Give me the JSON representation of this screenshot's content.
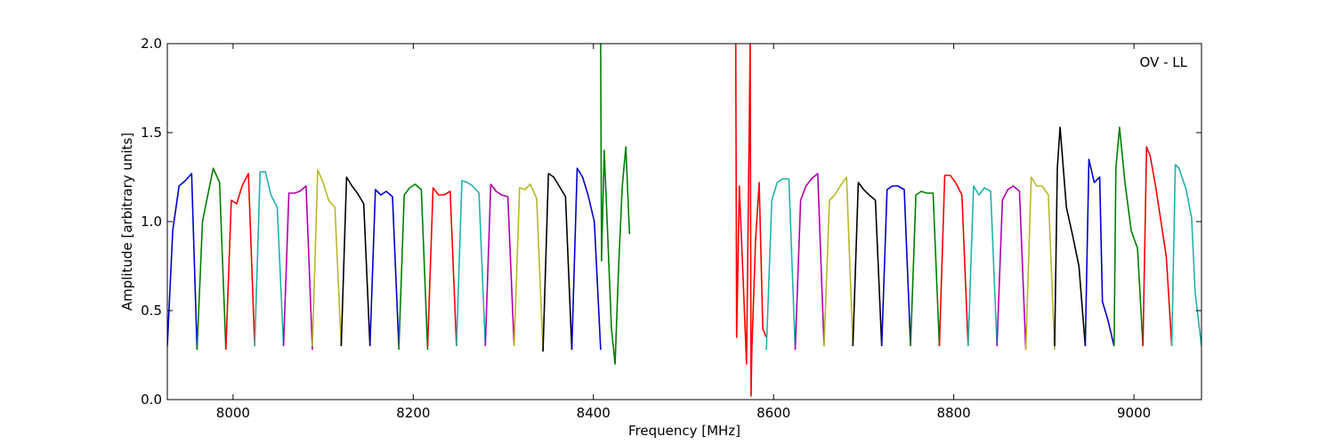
{
  "chart_data": {
    "type": "line",
    "title": "",
    "annotation": "OV - LL",
    "xlabel": "Frequency [MHz]",
    "ylabel": "Amplitude [arbitrary units]",
    "xlim": [
      7927,
      9075
    ],
    "ylim": [
      0.0,
      2.0
    ],
    "xticks": [
      8000,
      8200,
      8400,
      8600,
      8800,
      9000
    ],
    "yticks": [
      0.0,
      0.5,
      1.0,
      1.5,
      2.0
    ],
    "xtick_labels": [
      "8000",
      "8200",
      "8400",
      "8600",
      "8800",
      "9000"
    ],
    "ytick_labels": [
      "0.0",
      "0.5",
      "1.0",
      "1.5",
      "2.0"
    ],
    "grid": false,
    "legend": "none",
    "colors": {
      "blue": "#0000cc",
      "green": "#007f00",
      "red": "#ff0000",
      "cyan": "#20b2aa",
      "magenta": "#b000b0",
      "olive": "#b8b82a",
      "black": "#000000"
    },
    "series": [
      {
        "color": "blue",
        "x": [
          7927,
          7933,
          7940,
          7947,
          7954,
          7960
        ],
        "y": [
          0.3,
          0.95,
          1.2,
          1.23,
          1.27,
          0.28
        ]
      },
      {
        "color": "green",
        "x": [
          7960,
          7966,
          7972,
          7978,
          7985,
          7992
        ],
        "y": [
          0.28,
          1.0,
          1.15,
          1.3,
          1.22,
          0.28
        ]
      },
      {
        "color": "red",
        "x": [
          7992,
          7998,
          8004,
          8010,
          8017,
          8024
        ],
        "y": [
          0.28,
          1.12,
          1.1,
          1.2,
          1.27,
          0.3
        ]
      },
      {
        "color": "cyan",
        "x": [
          8024,
          8030,
          8036,
          8042,
          8049,
          8056
        ],
        "y": [
          0.3,
          1.28,
          1.28,
          1.15,
          1.08,
          0.3
        ]
      },
      {
        "color": "magenta",
        "x": [
          8056,
          8062,
          8068,
          8074,
          8081,
          8088
        ],
        "y": [
          0.3,
          1.16,
          1.16,
          1.17,
          1.2,
          0.28
        ]
      },
      {
        "color": "olive",
        "x": [
          8088,
          8094,
          8100,
          8106,
          8113,
          8120
        ],
        "y": [
          0.3,
          1.29,
          1.22,
          1.12,
          1.08,
          0.3
        ]
      },
      {
        "color": "black",
        "x": [
          8120,
          8126,
          8132,
          8138,
          8145,
          8152
        ],
        "y": [
          0.3,
          1.25,
          1.2,
          1.16,
          1.1,
          0.3
        ]
      },
      {
        "color": "blue",
        "x": [
          8152,
          8158,
          8164,
          8170,
          8177,
          8184
        ],
        "y": [
          0.3,
          1.18,
          1.15,
          1.17,
          1.14,
          0.3
        ]
      },
      {
        "color": "green",
        "x": [
          8184,
          8190,
          8196,
          8202,
          8209,
          8216
        ],
        "y": [
          0.28,
          1.15,
          1.19,
          1.21,
          1.18,
          0.28
        ]
      },
      {
        "color": "red",
        "x": [
          8216,
          8222,
          8228,
          8234,
          8241,
          8248
        ],
        "y": [
          0.3,
          1.19,
          1.15,
          1.15,
          1.17,
          0.3
        ]
      },
      {
        "color": "cyan",
        "x": [
          8248,
          8254,
          8260,
          8266,
          8273,
          8280
        ],
        "y": [
          0.3,
          1.23,
          1.22,
          1.2,
          1.16,
          0.3
        ]
      },
      {
        "color": "magenta",
        "x": [
          8280,
          8286,
          8292,
          8298,
          8305,
          8312
        ],
        "y": [
          0.3,
          1.21,
          1.17,
          1.15,
          1.14,
          0.3
        ]
      },
      {
        "color": "olive",
        "x": [
          8312,
          8318,
          8324,
          8330,
          8337,
          8344
        ],
        "y": [
          0.3,
          1.19,
          1.18,
          1.21,
          1.13,
          0.27
        ]
      },
      {
        "color": "black",
        "x": [
          8344,
          8350,
          8356,
          8362,
          8369,
          8376
        ],
        "y": [
          0.27,
          1.27,
          1.25,
          1.2,
          1.14,
          0.28
        ]
      },
      {
        "color": "blue",
        "x": [
          8376,
          8382,
          8388,
          8394,
          8401,
          8408
        ],
        "y": [
          0.28,
          1.3,
          1.25,
          1.15,
          1.0,
          0.28
        ]
      },
      {
        "color": "green",
        "x": [
          8408,
          8409,
          8412,
          8416,
          8420,
          8424,
          8428,
          8432,
          8436,
          8440
        ],
        "y": [
          2.0,
          0.78,
          1.4,
          0.9,
          0.4,
          0.2,
          0.75,
          1.2,
          1.42,
          0.93
        ]
      },
      {
        "color": "red",
        "x": [
          8558,
          8559,
          8562,
          8566,
          8570,
          8574,
          8575,
          8576,
          8580,
          8584,
          8588,
          8592
        ],
        "y": [
          2.0,
          0.35,
          1.2,
          0.7,
          0.2,
          2.0,
          0.02,
          0.3,
          0.9,
          1.22,
          0.4,
          0.35
        ]
      },
      {
        "color": "cyan",
        "x": [
          8592,
          8598,
          8604,
          8610,
          8617,
          8624
        ],
        "y": [
          0.28,
          1.12,
          1.22,
          1.24,
          1.24,
          0.28
        ]
      },
      {
        "color": "magenta",
        "x": [
          8624,
          8630,
          8636,
          8642,
          8649,
          8656
        ],
        "y": [
          0.28,
          1.12,
          1.2,
          1.24,
          1.27,
          0.3
        ]
      },
      {
        "color": "olive",
        "x": [
          8656,
          8662,
          8668,
          8674,
          8681,
          8688
        ],
        "y": [
          0.3,
          1.12,
          1.15,
          1.2,
          1.25,
          0.3
        ]
      },
      {
        "color": "black",
        "x": [
          8688,
          8694,
          8700,
          8706,
          8713,
          8720
        ],
        "y": [
          0.3,
          1.22,
          1.18,
          1.15,
          1.12,
          0.3
        ]
      },
      {
        "color": "blue",
        "x": [
          8720,
          8726,
          8732,
          8738,
          8745,
          8752
        ],
        "y": [
          0.3,
          1.18,
          1.2,
          1.2,
          1.18,
          0.3
        ]
      },
      {
        "color": "green",
        "x": [
          8752,
          8758,
          8764,
          8770,
          8777,
          8784
        ],
        "y": [
          0.3,
          1.15,
          1.17,
          1.16,
          1.16,
          0.3
        ]
      },
      {
        "color": "red",
        "x": [
          8784,
          8790,
          8796,
          8802,
          8809,
          8816
        ],
        "y": [
          0.3,
          1.26,
          1.26,
          1.22,
          1.15,
          0.3
        ]
      },
      {
        "color": "cyan",
        "x": [
          8816,
          8822,
          8828,
          8834,
          8841,
          8848
        ],
        "y": [
          0.3,
          1.2,
          1.15,
          1.19,
          1.17,
          0.3
        ]
      },
      {
        "color": "magenta",
        "x": [
          8848,
          8854,
          8860,
          8866,
          8873,
          8880
        ],
        "y": [
          0.3,
          1.12,
          1.18,
          1.2,
          1.17,
          0.28
        ]
      },
      {
        "color": "olive",
        "x": [
          8880,
          8886,
          8892,
          8898,
          8905,
          8912
        ],
        "y": [
          0.28,
          1.25,
          1.2,
          1.2,
          1.15,
          0.28
        ]
      },
      {
        "color": "black",
        "x": [
          8912,
          8915,
          8918,
          8925,
          8932,
          8939,
          8946
        ],
        "y": [
          0.3,
          1.3,
          1.53,
          1.08,
          0.92,
          0.75,
          0.3
        ]
      },
      {
        "color": "blue",
        "x": [
          8946,
          8950,
          8956,
          8962,
          8965,
          8971,
          8978
        ],
        "y": [
          0.3,
          1.35,
          1.22,
          1.25,
          0.55,
          0.45,
          0.3
        ]
      },
      {
        "color": "green",
        "x": [
          8978,
          8980,
          8984,
          8990,
          8997,
          9004,
          9010
        ],
        "y": [
          0.3,
          1.3,
          1.53,
          1.22,
          0.95,
          0.85,
          0.3
        ]
      },
      {
        "color": "red",
        "x": [
          9010,
          9014,
          9018,
          9024,
          9030,
          9036,
          9042
        ],
        "y": [
          0.3,
          1.42,
          1.37,
          1.2,
          1.0,
          0.8,
          0.3
        ]
      },
      {
        "color": "cyan",
        "x": [
          9042,
          9046,
          9050,
          9058,
          9064,
          9068,
          9075
        ],
        "y": [
          0.3,
          1.32,
          1.3,
          1.18,
          1.02,
          0.6,
          0.3
        ]
      }
    ]
  }
}
